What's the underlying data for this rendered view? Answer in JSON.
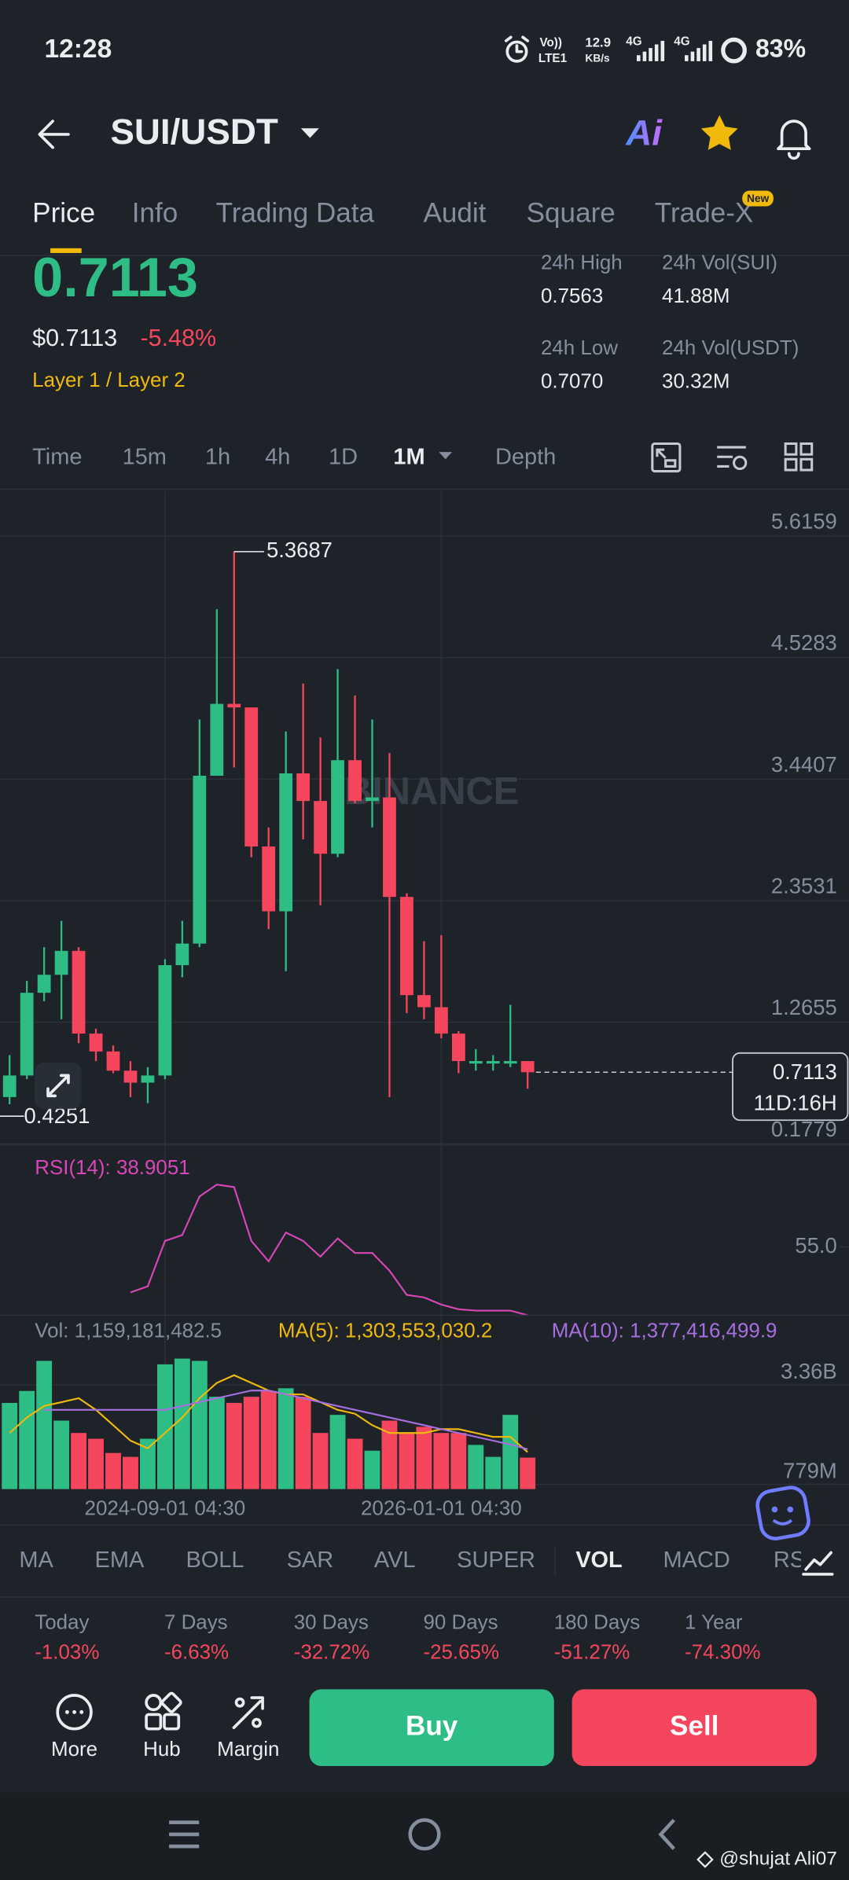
{
  "status_bar": {
    "time": "12:28",
    "volte": "Vo))",
    "lte": "LTE1",
    "speed": "12.9",
    "speed_unit": "KB/s",
    "net1": "4G",
    "net2": "4G",
    "battery": "83%"
  },
  "header": {
    "pair": "SUI/USDT",
    "ai": "Ai"
  },
  "tabs": [
    "Price",
    "Info",
    "Trading Data",
    "Audit",
    "Square",
    "Trade-X"
  ],
  "tab_badge": "New",
  "ticker": {
    "price": "0.7113",
    "usd_price": "$0.7113",
    "change": "-5.48%",
    "tags": "Layer 1 / Layer 2",
    "stats": [
      {
        "label": "24h High",
        "value": "0.7563"
      },
      {
        "label": "24h Vol(SUI)",
        "value": "41.88M"
      },
      {
        "label": "24h Low",
        "value": "0.7070"
      },
      {
        "label": "24h Vol(USDT)",
        "value": "30.32M"
      }
    ]
  },
  "intervals": [
    "Time",
    "15m",
    "1h",
    "4h",
    "1D",
    "1M",
    "Depth"
  ],
  "chart_data": [
    {
      "type": "candlestick",
      "categories": [
        null,
        null,
        null,
        null,
        null,
        null,
        null,
        null,
        null,
        "2024-09-01 04:30",
        null,
        null,
        null,
        null,
        null,
        null,
        null,
        null,
        null,
        null,
        null,
        null,
        null,
        null,
        null,
        "2026-01-01 04:30",
        null,
        null,
        null,
        null,
        null
      ],
      "open": [
        0.489,
        0.682,
        1.422,
        1.583,
        1.797,
        1.057,
        0.897,
        0.725,
        0.618,
        0.682,
        1.669,
        1.862,
        3.364,
        4.007,
        3.975,
        2.731,
        2.151,
        3.385,
        3.138,
        2.666,
        3.503,
        3.138,
        3.17,
        2.28,
        1.401,
        1.293,
        1.057,
        0.789,
        0.789,
        0.789,
        0.811
      ],
      "high": [
        0.864,
        1.529,
        1.83,
        2.066,
        1.83,
        1.1,
        0.95,
        0.811,
        0.757,
        1.722,
        2.066,
        3.868,
        4.854,
        5.3687,
        3.975,
        2.902,
        3.76,
        4.189,
        3.707,
        4.318,
        4.082,
        3.868,
        3.567,
        2.312,
        1.883,
        1.937,
        1.079,
        0.918,
        0.864,
        1.315,
        0.811
      ],
      "low": [
        0.4251,
        0.65,
        1.347,
        1.186,
        0.971,
        0.811,
        0.703,
        0.489,
        0.435,
        0.65,
        1.561,
        1.83,
        3.364,
        3.438,
        2.634,
        1.991,
        1.615,
        2.795,
        2.205,
        2.634,
        3.117,
        2.902,
        0.489,
        1.24,
        1.186,
        1.014,
        0.703,
        0.725,
        0.725,
        0.757,
        0.564
      ],
      "close": [
        0.682,
        1.422,
        1.583,
        1.797,
        1.057,
        0.897,
        0.725,
        0.618,
        0.682,
        1.669,
        1.862,
        3.364,
        4.007,
        3.975,
        2.731,
        2.151,
        3.385,
        3.138,
        2.666,
        3.503,
        3.138,
        3.17,
        2.28,
        1.401,
        1.293,
        1.057,
        0.811,
        0.811,
        0.811,
        0.811,
        0.7113
      ],
      "ylim": [
        0.06,
        5.906
      ],
      "yticks": [
        5.6159,
        4.5283,
        3.4407,
        2.3531,
        1.2655,
        0.1779
      ],
      "grid": true,
      "up_color": "#2ebd85",
      "down_color": "#f6465d",
      "countdown": "11D:16H",
      "watermark": "BINANCE"
    },
    {
      "type": "line",
      "title": "RSI(14): 38.9051",
      "color": "#d946b8",
      "values": [
        null,
        null,
        null,
        null,
        null,
        null,
        null,
        44.3,
        45.7,
        56.4,
        57.8,
        66.9,
        69.7,
        69.1,
        56.4,
        51.6,
        58.4,
        56.4,
        52.7,
        57.0,
        53.6,
        53.6,
        49.4,
        43.7,
        43.1,
        41.4,
        40.3,
        40.0,
        40.0,
        40.0,
        38.9051
      ],
      "ylim": [
        38.05,
        77.6
      ],
      "yticks": [
        {
          "value": 55,
          "label": "55.0"
        }
      ]
    },
    {
      "type": "bar",
      "title": "Vol: 1,159,181,482.5",
      "values": [
        2.58,
        2.89,
        3.67,
        2.12,
        1.8,
        1.65,
        1.28,
        1.18,
        1.65,
        3.58,
        3.73,
        3.67,
        2.74,
        2.58,
        2.74,
        2.89,
        2.96,
        2.74,
        1.8,
        2.27,
        1.65,
        1.34,
        2.12,
        1.8,
        1.96,
        1.8,
        1.8,
        1.49,
        1.18,
        2.27,
        1.16
      ],
      "ylim": [
        0.343,
        3.89
      ],
      "yticks": [
        {
          "value": 3.36,
          "label": "3.36B"
        },
        {
          "value": 0.779,
          "label": "779M"
        }
      ],
      "lines": [
        {
          "name": "MA(5): 1,303,553,030.2",
          "color": "#f0b90b",
          "values": [
            1.8,
            2.2,
            2.5,
            2.6,
            2.7,
            2.4,
            2.0,
            1.6,
            1.4,
            1.8,
            2.2,
            2.7,
            3.1,
            3.3,
            3.1,
            2.9,
            2.8,
            2.8,
            2.6,
            2.4,
            2.3,
            2.0,
            1.8,
            1.8,
            1.8,
            1.9,
            1.9,
            1.8,
            1.7,
            1.7,
            1.3
          ]
        },
        {
          "name": "MA(10): 1,377,416,499.9",
          "color": "#a66ee0",
          "values": [
            null,
            null,
            2.4,
            2.4,
            2.4,
            2.4,
            2.4,
            2.4,
            2.4,
            2.4,
            2.5,
            2.6,
            2.7,
            2.8,
            2.9,
            2.9,
            2.8,
            2.7,
            2.6,
            2.5,
            2.4,
            2.3,
            2.2,
            2.1,
            2.0,
            1.9,
            1.8,
            1.7,
            1.6,
            1.5,
            1.38
          ]
        }
      ]
    }
  ],
  "indicators": [
    "MA",
    "EMA",
    "BOLL",
    "SAR",
    "AVL",
    "SUPER",
    "VOL",
    "MACD",
    "RSI"
  ],
  "performance": [
    {
      "label": "Today",
      "value": "-1.03%"
    },
    {
      "label": "7 Days",
      "value": "-6.63%"
    },
    {
      "label": "30 Days",
      "value": "-32.72%"
    },
    {
      "label": "90 Days",
      "value": "-25.65%"
    },
    {
      "label": "180 Days",
      "value": "-51.27%"
    },
    {
      "label": "1 Year",
      "value": "-74.30%"
    }
  ],
  "actions": [
    "More",
    "Hub",
    "Margin"
  ],
  "buy": "Buy",
  "sell": "Sell",
  "credit": "@shujat Ali07"
}
